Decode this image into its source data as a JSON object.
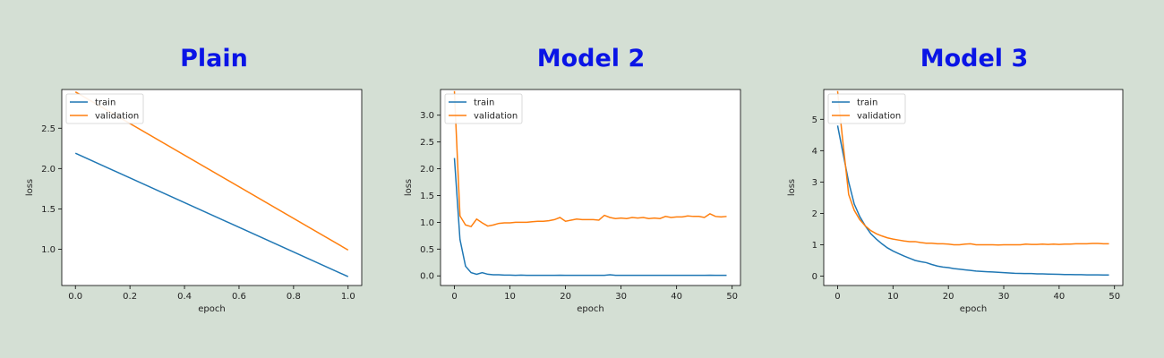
{
  "chart_data": [
    {
      "type": "line",
      "title": "Plain",
      "xlabel": "epoch",
      "ylabel": "loss",
      "xlim": [
        -0.05,
        1.05
      ],
      "ylim": [
        0.55,
        2.98
      ],
      "xticks": [
        0.0,
        0.2,
        0.4,
        0.6,
        0.8,
        1.0
      ],
      "xtick_labels": [
        "0.0",
        "0.2",
        "0.4",
        "0.6",
        "0.8",
        "1.0"
      ],
      "yticks": [
        1.0,
        1.5,
        2.0,
        2.5
      ],
      "ytick_labels": [
        "1.0",
        "1.5",
        "2.0",
        "2.5"
      ],
      "grid": false,
      "legend": "top-left",
      "series": [
        {
          "name": "train",
          "color": "#1f77b4",
          "x": [
            0,
            1
          ],
          "y": [
            2.19,
            0.66
          ]
        },
        {
          "name": "validation",
          "color": "#ff7f0e",
          "x": [
            0,
            1
          ],
          "y": [
            2.95,
            0.99
          ]
        }
      ]
    },
    {
      "type": "line",
      "title": "Model 2",
      "xlabel": "epoch",
      "ylabel": "loss",
      "xlim": [
        -2.5,
        51.5
      ],
      "ylim": [
        -0.18,
        3.48
      ],
      "xticks": [
        0,
        10,
        20,
        30,
        40,
        50
      ],
      "xtick_labels": [
        "0",
        "10",
        "20",
        "30",
        "40",
        "50"
      ],
      "yticks": [
        0.0,
        0.5,
        1.0,
        1.5,
        2.0,
        2.5,
        3.0
      ],
      "ytick_labels": [
        "0.0",
        "0.5",
        "1.0",
        "1.5",
        "2.0",
        "2.5",
        "3.0"
      ],
      "grid": false,
      "legend": "top-left",
      "series": [
        {
          "name": "train",
          "color": "#1f77b4",
          "x": [
            0,
            1,
            2,
            3,
            4,
            5,
            6,
            7,
            8,
            9,
            10,
            11,
            12,
            13,
            14,
            15,
            16,
            17,
            18,
            19,
            20,
            21,
            22,
            23,
            24,
            25,
            26,
            27,
            28,
            29,
            30,
            31,
            32,
            33,
            34,
            35,
            36,
            37,
            38,
            39,
            40,
            41,
            42,
            43,
            44,
            45,
            46,
            47,
            48,
            49
          ],
          "y": [
            2.2,
            0.68,
            0.18,
            0.06,
            0.03,
            0.06,
            0.03,
            0.02,
            0.02,
            0.015,
            0.015,
            0.01,
            0.015,
            0.01,
            0.01,
            0.01,
            0.01,
            0.01,
            0.01,
            0.012,
            0.01,
            0.01,
            0.01,
            0.01,
            0.01,
            0.01,
            0.01,
            0.01,
            0.02,
            0.01,
            0.01,
            0.01,
            0.01,
            0.01,
            0.01,
            0.01,
            0.01,
            0.01,
            0.01,
            0.01,
            0.01,
            0.01,
            0.01,
            0.01,
            0.01,
            0.01,
            0.012,
            0.01,
            0.01,
            0.01
          ]
        },
        {
          "name": "validation",
          "color": "#ff7f0e",
          "x": [
            0,
            1,
            2,
            3,
            4,
            5,
            6,
            7,
            8,
            9,
            10,
            11,
            12,
            13,
            14,
            15,
            16,
            17,
            18,
            19,
            20,
            21,
            22,
            23,
            24,
            25,
            26,
            27,
            28,
            29,
            30,
            31,
            32,
            33,
            34,
            35,
            36,
            37,
            38,
            39,
            40,
            41,
            42,
            43,
            44,
            45,
            46,
            47,
            48,
            49
          ],
          "y": [
            3.45,
            1.12,
            0.95,
            0.92,
            1.06,
            0.99,
            0.93,
            0.95,
            0.98,
            0.99,
            0.99,
            1.0,
            1.0,
            1.0,
            1.01,
            1.02,
            1.02,
            1.03,
            1.05,
            1.09,
            1.02,
            1.04,
            1.06,
            1.05,
            1.05,
            1.05,
            1.04,
            1.13,
            1.09,
            1.07,
            1.08,
            1.07,
            1.09,
            1.08,
            1.09,
            1.07,
            1.08,
            1.07,
            1.11,
            1.09,
            1.1,
            1.1,
            1.12,
            1.11,
            1.11,
            1.09,
            1.16,
            1.11,
            1.1,
            1.11
          ]
        }
      ]
    },
    {
      "type": "line",
      "title": "Model 3",
      "xlabel": "epoch",
      "ylabel": "loss",
      "xlim": [
        -2.5,
        51.5
      ],
      "ylim": [
        -0.3,
        5.95
      ],
      "xticks": [
        0,
        10,
        20,
        30,
        40,
        50
      ],
      "xtick_labels": [
        "0",
        "10",
        "20",
        "30",
        "40",
        "50"
      ],
      "yticks": [
        0,
        1,
        2,
        3,
        4,
        5
      ],
      "ytick_labels": [
        "0",
        "1",
        "2",
        "3",
        "4",
        "5"
      ],
      "grid": false,
      "legend": "top-left",
      "series": [
        {
          "name": "train",
          "color": "#1f77b4",
          "x": [
            0,
            1,
            2,
            3,
            4,
            5,
            6,
            7,
            8,
            9,
            10,
            11,
            12,
            13,
            14,
            15,
            16,
            17,
            18,
            19,
            20,
            21,
            22,
            23,
            24,
            25,
            26,
            27,
            28,
            29,
            30,
            31,
            32,
            33,
            34,
            35,
            36,
            37,
            38,
            39,
            40,
            41,
            42,
            43,
            44,
            45,
            46,
            47,
            48,
            49
          ],
          "y": [
            4.8,
            3.9,
            3.0,
            2.3,
            1.9,
            1.6,
            1.35,
            1.18,
            1.03,
            0.9,
            0.8,
            0.72,
            0.64,
            0.57,
            0.5,
            0.46,
            0.43,
            0.37,
            0.32,
            0.29,
            0.27,
            0.24,
            0.22,
            0.2,
            0.18,
            0.16,
            0.15,
            0.14,
            0.13,
            0.12,
            0.11,
            0.1,
            0.09,
            0.085,
            0.08,
            0.08,
            0.07,
            0.07,
            0.065,
            0.06,
            0.055,
            0.05,
            0.05,
            0.045,
            0.045,
            0.04,
            0.04,
            0.04,
            0.035,
            0.035
          ]
        },
        {
          "name": "validation",
          "color": "#ff7f0e",
          "x": [
            0,
            1,
            2,
            3,
            4,
            5,
            6,
            7,
            8,
            9,
            10,
            11,
            12,
            13,
            14,
            15,
            16,
            17,
            18,
            19,
            20,
            21,
            22,
            23,
            24,
            25,
            26,
            27,
            28,
            29,
            30,
            31,
            32,
            33,
            34,
            35,
            36,
            37,
            38,
            39,
            40,
            41,
            42,
            43,
            44,
            45,
            46,
            47,
            48,
            49
          ],
          "y": [
            5.9,
            4.2,
            2.6,
            2.1,
            1.8,
            1.6,
            1.45,
            1.35,
            1.28,
            1.22,
            1.18,
            1.15,
            1.12,
            1.1,
            1.1,
            1.07,
            1.05,
            1.05,
            1.03,
            1.03,
            1.02,
            1.0,
            1.0,
            1.02,
            1.03,
            1.0,
            1.0,
            1.0,
            1.0,
            0.99,
            1.0,
            1.0,
            1.0,
            1.0,
            1.02,
            1.01,
            1.01,
            1.02,
            1.01,
            1.02,
            1.01,
            1.02,
            1.02,
            1.03,
            1.03,
            1.03,
            1.04,
            1.04,
            1.03,
            1.03
          ]
        }
      ]
    }
  ]
}
